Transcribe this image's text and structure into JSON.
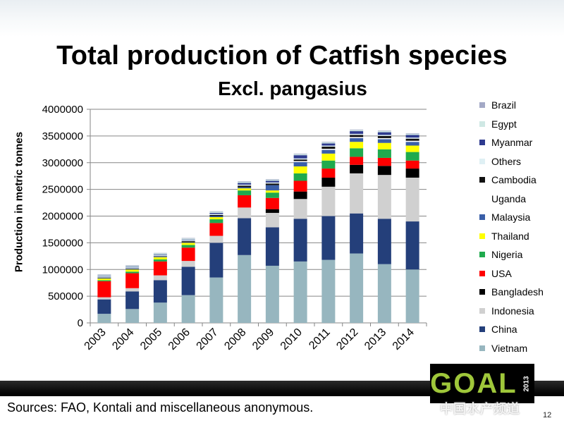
{
  "slide": {
    "title": "Total production of Catfish species",
    "subtitle": "Excl. pangasius",
    "sources": "Sources: FAO, Kontali and miscellaneous anonymous.",
    "page_number": "12",
    "logo_text": "GOAL",
    "logo_year": "2013",
    "watermark": "中国水产频道"
  },
  "chart_data": {
    "type": "bar",
    "stacked": true,
    "title": "",
    "xlabel": "",
    "ylabel": "Production in metric tonnes",
    "ylim": [
      0,
      4000000
    ],
    "ytick_step": 500000,
    "yticks": [
      "0",
      "500000",
      "1000000",
      "1500000",
      "2000000",
      "2500000",
      "3000000",
      "3500000",
      "4000000"
    ],
    "grid": true,
    "legend_position": "right",
    "categories": [
      "2003",
      "2004",
      "2005",
      "2006",
      "2007",
      "2008",
      "2009",
      "2010",
      "2011",
      "2012",
      "2013",
      "2014"
    ],
    "series": [
      {
        "name": "Vietnam",
        "color": "#97b6bf",
        "values": [
          170000,
          260000,
          380000,
          520000,
          850000,
          1270000,
          1070000,
          1150000,
          1180000,
          1300000,
          1100000,
          1000000
        ]
      },
      {
        "name": "China",
        "color": "#243f7a",
        "values": [
          270000,
          330000,
          420000,
          530000,
          650000,
          690000,
          720000,
          800000,
          820000,
          750000,
          850000,
          900000
        ]
      },
      {
        "name": "Indonesia",
        "color": "#d0d0d0",
        "values": [
          40000,
          60000,
          90000,
          110000,
          130000,
          200000,
          270000,
          370000,
          550000,
          750000,
          820000,
          820000
        ]
      },
      {
        "name": "Bangladesh",
        "color": "#000000",
        "values": [
          0,
          0,
          0,
          0,
          0,
          0,
          70000,
          140000,
          170000,
          160000,
          170000,
          170000
        ]
      },
      {
        "name": "USA",
        "color": "#ff0000",
        "values": [
          300000,
          280000,
          260000,
          250000,
          240000,
          230000,
          210000,
          200000,
          170000,
          150000,
          150000,
          150000
        ]
      },
      {
        "name": "Nigeria",
        "color": "#1faa4d",
        "values": [
          20000,
          30000,
          40000,
          50000,
          70000,
          90000,
          100000,
          140000,
          150000,
          160000,
          160000,
          160000
        ]
      },
      {
        "name": "Thailand",
        "color": "#ffff00",
        "values": [
          30000,
          40000,
          40000,
          40000,
          40000,
          40000,
          40000,
          130000,
          130000,
          120000,
          120000,
          120000
        ]
      },
      {
        "name": "Malaysia",
        "color": "#3a5fa8",
        "values": [
          10000,
          10000,
          10000,
          10000,
          20000,
          20000,
          100000,
          80000,
          70000,
          70000,
          70000,
          70000
        ]
      },
      {
        "name": "Uganda",
        "color": "#ffffff",
        "values": [
          0,
          0,
          0,
          0,
          0,
          0,
          0,
          20000,
          20000,
          20000,
          20000,
          20000
        ]
      },
      {
        "name": "Cambodia",
        "color": "#111111",
        "values": [
          10000,
          10000,
          10000,
          20000,
          20000,
          30000,
          30000,
          30000,
          40000,
          40000,
          40000,
          40000
        ]
      },
      {
        "name": "Others",
        "color": "#dff0f4",
        "values": [
          20000,
          20000,
          20000,
          20000,
          20000,
          20000,
          20000,
          20000,
          20000,
          20000,
          20000,
          20000
        ]
      },
      {
        "name": "Myanmar",
        "color": "#2e3a8f",
        "values": [
          10000,
          10000,
          10000,
          10000,
          20000,
          30000,
          30000,
          60000,
          40000,
          50000,
          50000,
          50000
        ]
      },
      {
        "name": "Egypt",
        "color": "#cfe8e4",
        "values": [
          20000,
          20000,
          20000,
          20000,
          20000,
          20000,
          20000,
          20000,
          20000,
          20000,
          20000,
          20000
        ]
      },
      {
        "name": "Brazil",
        "color": "#a3a9c6",
        "values": [
          10000,
          10000,
          10000,
          10000,
          10000,
          10000,
          10000,
          10000,
          10000,
          10000,
          10000,
          10000
        ]
      }
    ]
  }
}
